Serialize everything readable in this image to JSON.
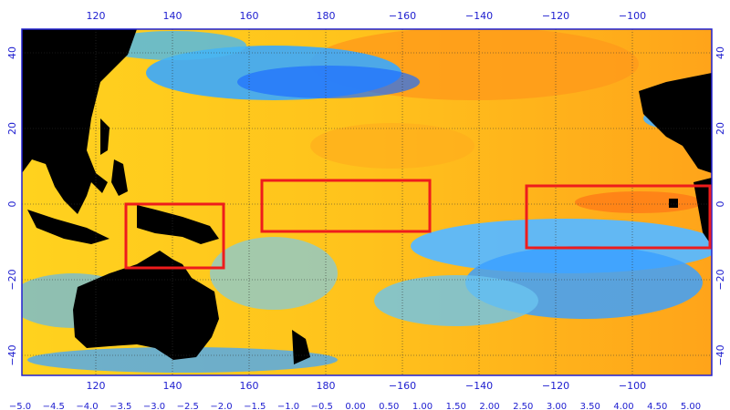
{
  "map": {
    "lon_labels": [
      "120",
      "140",
      "160",
      "180",
      "−160",
      "−140",
      "−120",
      "−100"
    ],
    "lat_labels": [
      "40",
      "20",
      "0",
      "−20",
      "−40"
    ],
    "colorbar_labels": [
      "−5.0",
      "−4.5",
      "−4.0",
      "−3.5",
      "−3.0",
      "−2.5",
      "−2.0",
      "−1.5",
      "−1.0",
      "−0.5",
      "0.00",
      "0.50",
      "1.00",
      "1.50",
      "2.00",
      "2.50",
      "3.00",
      "3.50",
      "4.00",
      "4.50",
      "5.00"
    ]
  }
}
